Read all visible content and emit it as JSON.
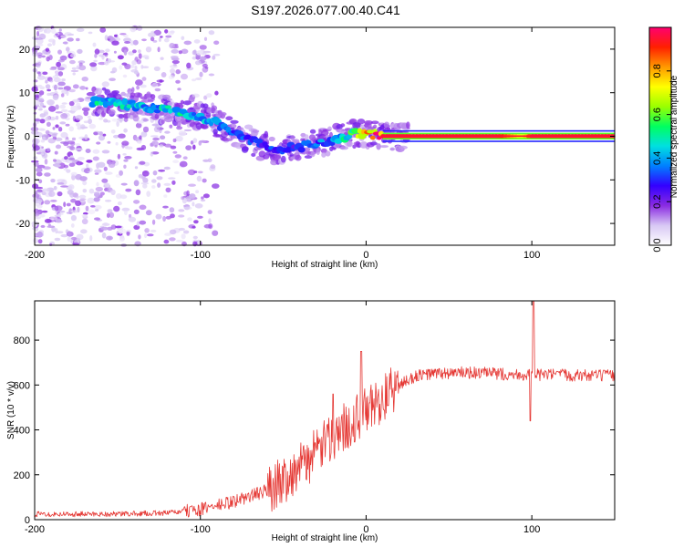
{
  "title": "S197.2026.077.00.40.C41",
  "chart_data": [
    {
      "type": "heatmap",
      "name": "spectrogram",
      "xlabel": "Height of straight line (km)",
      "ylabel": "Frequency (Hz)",
      "xlim": [
        -200,
        150
      ],
      "ylim": [
        -25,
        25
      ],
      "xticks": [
        -200,
        -100,
        0,
        100
      ],
      "yticks": [
        -20,
        -10,
        0,
        10,
        20
      ],
      "colorbar": {
        "label": "Normalized spectral amplitude",
        "range": [
          0,
          1
        ],
        "ticks": [
          0.0,
          0.2,
          0.4,
          0.6,
          0.8
        ],
        "tick_labels": [
          "0.0",
          "0.2",
          "0.4",
          "0.6",
          "0.8"
        ],
        "colors": [
          "#ffffff",
          "#d8c8f4",
          "#8a2be2",
          "#3300ff",
          "#0080ff",
          "#00e0e0",
          "#00ff60",
          "#9aff00",
          "#ffff00",
          "#ff9900",
          "#ff2000",
          "#ff0070"
        ]
      },
      "ridge": {
        "x": [
          -160,
          -150,
          -140,
          -130,
          -120,
          -110,
          -100,
          -90,
          -80,
          -70,
          -60,
          -50,
          -45,
          -40,
          -30,
          -20,
          -10,
          0,
          10,
          20,
          50,
          80,
          95,
          100,
          150
        ],
        "frequency": [
          8,
          7.5,
          7,
          6.5,
          6,
          5.5,
          4.5,
          3,
          1,
          -1,
          -2.5,
          -3.5,
          -2,
          -2.5,
          -1.5,
          -1,
          0.5,
          0.5,
          0,
          0,
          0,
          0,
          0,
          0,
          0
        ],
        "amplitude": [
          0.45,
          0.45,
          0.4,
          0.4,
          0.45,
          0.45,
          0.4,
          0.4,
          0.35,
          0.3,
          0.3,
          0.28,
          0.28,
          0.3,
          0.35,
          0.4,
          0.5,
          0.7,
          0.95,
          0.95,
          0.95,
          0.95,
          0.7,
          0.95,
          0.95
        ]
      }
    },
    {
      "type": "line",
      "name": "snr",
      "xlabel": "Height of straight line (km)",
      "ylabel": "SNR (10 * v/v)",
      "xlim": [
        -200,
        150
      ],
      "ylim": [
        0,
        975
      ],
      "xticks": [
        -200,
        -100,
        0,
        100
      ],
      "yticks": [
        0,
        200,
        400,
        600,
        800
      ],
      "color": "#e53935",
      "envelope": {
        "x": [
          -200,
          -150,
          -120,
          -100,
          -80,
          -60,
          -40,
          -30,
          -20,
          -10,
          0,
          10,
          20,
          30,
          40,
          60,
          80,
          100,
          120,
          150
        ],
        "y": [
          25,
          25,
          30,
          45,
          80,
          130,
          230,
          300,
          370,
          430,
          480,
          540,
          600,
          640,
          650,
          655,
          650,
          645,
          645,
          640
        ]
      },
      "spikes": [
        {
          "x": -20,
          "y": 560
        },
        {
          "x": -3,
          "y": 750
        },
        {
          "x": 101,
          "y": 975
        },
        {
          "x": 99,
          "y": 440
        }
      ]
    }
  ]
}
